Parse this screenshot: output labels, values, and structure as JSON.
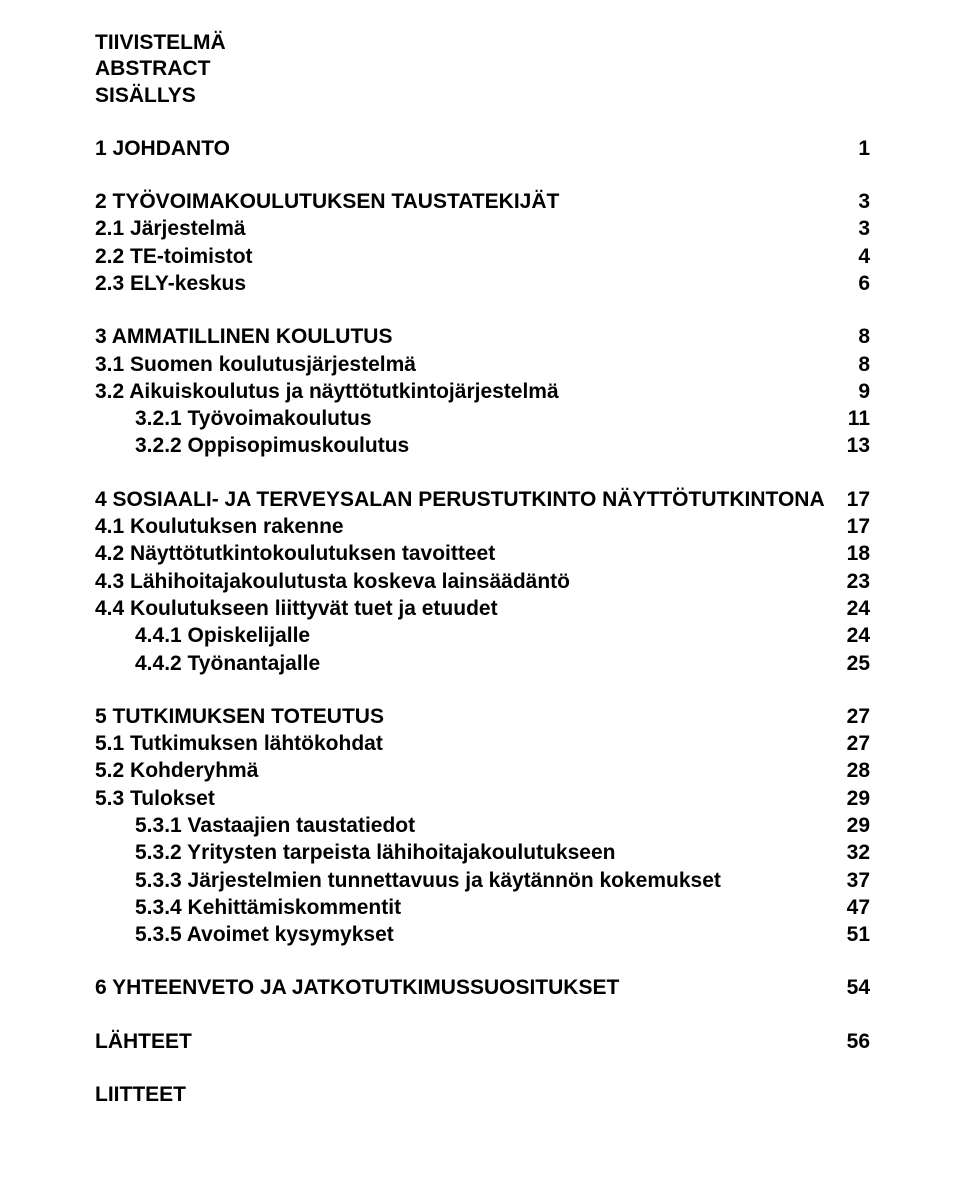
{
  "front": [
    "TIIVISTELMÄ",
    "ABSTRACT",
    "SISÄLLYS"
  ],
  "sections": [
    {
      "rows": [
        {
          "label": "1 JOHDANTO",
          "page": "1",
          "indent": 0
        }
      ]
    },
    {
      "rows": [
        {
          "label": "2 TYÖVOIMAKOULUTUKSEN TAUSTATEKIJÄT",
          "page": "3",
          "indent": 0
        },
        {
          "label": "2.1 Järjestelmä",
          "page": "3",
          "indent": 1
        },
        {
          "label": "2.2 TE-toimistot",
          "page": "4",
          "indent": 1
        },
        {
          "label": "2.3 ELY-keskus",
          "page": "6",
          "indent": 1
        }
      ]
    },
    {
      "rows": [
        {
          "label": "3 AMMATILLINEN KOULUTUS",
          "page": "8",
          "indent": 0
        },
        {
          "label": "3.1 Suomen koulutusjärjestelmä",
          "page": "8",
          "indent": 1
        },
        {
          "label": "3.2 Aikuiskoulutus ja näyttötutkintojärjestelmä",
          "page": "9",
          "indent": 1
        },
        {
          "label": "3.2.1 Työvoimakoulutus",
          "page": "11",
          "indent": 2
        },
        {
          "label": "3.2.2 Oppisopimuskoulutus",
          "page": "13",
          "indent": 2
        }
      ]
    },
    {
      "rows": [
        {
          "label": "4 SOSIAALI- JA TERVEYSALAN PERUSTUTKINTO NÄYTTÖTUTKINTONA",
          "page": "17",
          "indent": 0
        },
        {
          "label": "4.1 Koulutuksen rakenne",
          "page": "17",
          "indent": 1
        },
        {
          "label": "4.2 Näyttötutkintokoulutuksen tavoitteet",
          "page": "18",
          "indent": 1
        },
        {
          "label": "4.3 Lähihoitajakoulutusta koskeva lainsäädäntö",
          "page": "23",
          "indent": 1
        },
        {
          "label": "4.4 Koulutukseen liittyvät tuet ja etuudet",
          "page": "24",
          "indent": 1
        },
        {
          "label": "4.4.1 Opiskelijalle",
          "page": "24",
          "indent": 2
        },
        {
          "label": "4.4.2 Työnantajalle",
          "page": "25",
          "indent": 2
        }
      ]
    },
    {
      "rows": [
        {
          "label": "5 TUTKIMUKSEN TOTEUTUS",
          "page": "27",
          "indent": 0
        },
        {
          "label": "5.1 Tutkimuksen lähtökohdat",
          "page": "27",
          "indent": 1
        },
        {
          "label": "5.2 Kohderyhmä",
          "page": "28",
          "indent": 1
        },
        {
          "label": "5.3 Tulokset",
          "page": "29",
          "indent": 1
        },
        {
          "label": "5.3.1 Vastaajien taustatiedot",
          "page": "29",
          "indent": 2
        },
        {
          "label": "5.3.2 Yritysten tarpeista lähihoitajakoulutukseen",
          "page": "32",
          "indent": 2
        },
        {
          "label": "5.3.3 Järjestelmien tunnettavuus ja käytännön kokemukset",
          "page": "37",
          "indent": 2
        },
        {
          "label": "5.3.4 Kehittämiskommentit",
          "page": "47",
          "indent": 2
        },
        {
          "label": "5.3.5 Avoimet kysymykset",
          "page": "51",
          "indent": 2
        }
      ]
    },
    {
      "rows": [
        {
          "label": "6 YHTEENVETO JA JATKOTUTKIMUSSUOSITUKSET",
          "page": "54",
          "indent": 0
        }
      ]
    },
    {
      "rows": [
        {
          "label": "LÄHTEET",
          "page": "56",
          "indent": 0
        }
      ]
    },
    {
      "rows": [
        {
          "label": "LIITTEET",
          "page": "",
          "indent": 0
        }
      ]
    }
  ]
}
